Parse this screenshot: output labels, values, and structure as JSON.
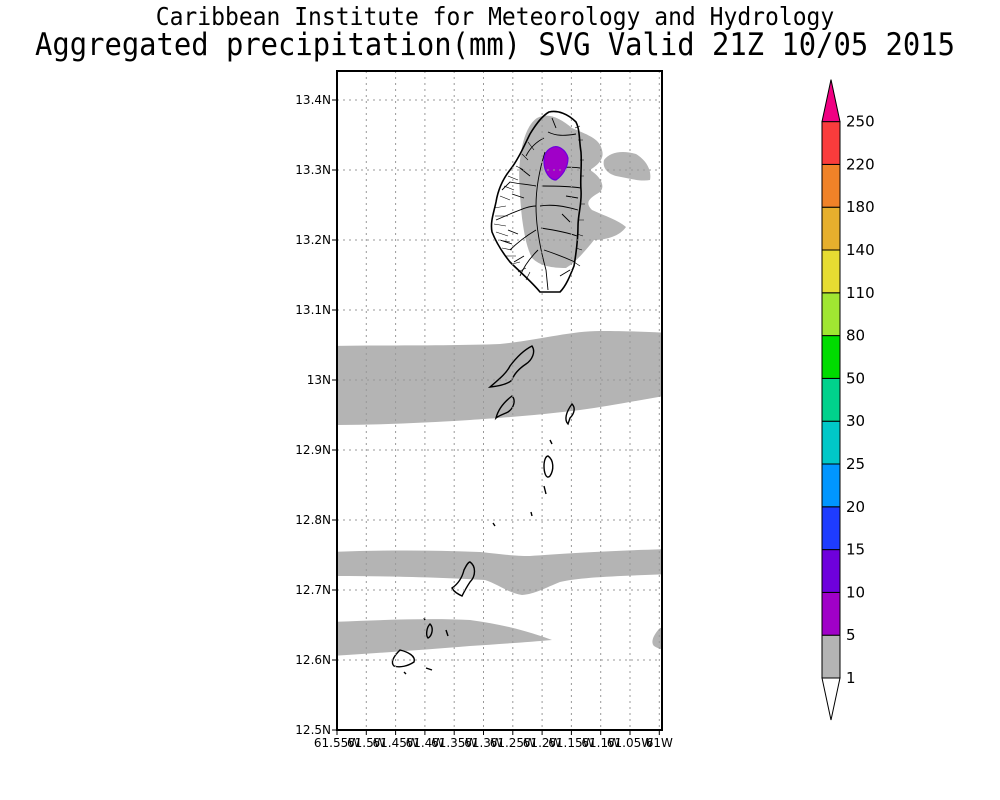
{
  "header": {
    "line1": "Caribbean Institute for Meteorology and Hydrology",
    "line2": "Aggregated precipitation(mm) SVG Valid 21Z 10/05 2015"
  },
  "map": {
    "y_ticks": [
      "13.4N",
      "13.3N",
      "13.2N",
      "13.1N",
      "13N",
      "12.9N",
      "12.8N",
      "12.7N",
      "12.6N",
      "12.5N"
    ],
    "x_ticks": [
      "61.55W",
      "61.5W",
      "61.45W",
      "61.4W",
      "61.35W",
      "61.3W",
      "61.25W",
      "61.2W",
      "61.15W",
      "61.1W",
      "61.05W",
      "61W"
    ],
    "lat_range": [
      12.5,
      13.44
    ],
    "lon_range": [
      -61.55,
      -61.0
    ],
    "grid": true,
    "shading_color": "#b4b4b4"
  },
  "colorbar": {
    "levels": [
      "1",
      "5",
      "10",
      "15",
      "20",
      "25",
      "30",
      "50",
      "80",
      "110",
      "140",
      "180",
      "220",
      "250"
    ],
    "colors": [
      "#b4b4b4",
      "#a000c8",
      "#6e00dc",
      "#1e3cff",
      "#0096ff",
      "#00c8c8",
      "#00d28c",
      "#00dc00",
      "#a0e632",
      "#e6dc32",
      "#e6af2d",
      "#f08228",
      "#fa3c3c",
      "#f00082"
    ]
  }
}
